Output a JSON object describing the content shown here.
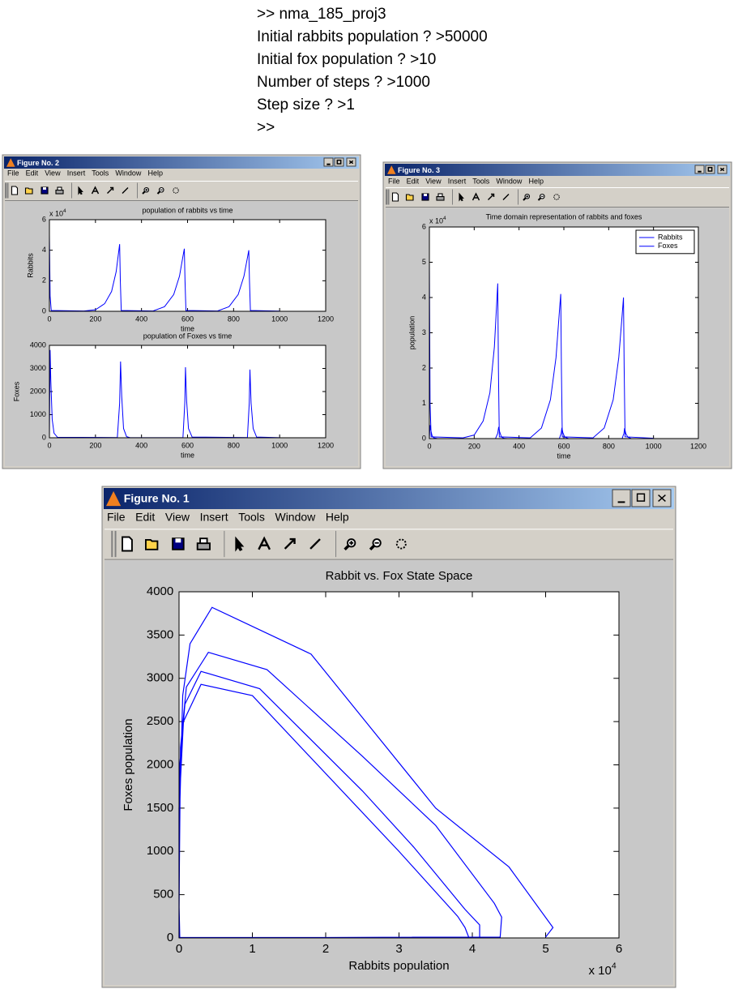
{
  "console": {
    "lines": [
      ">> nma_185_proj3",
      "Initial rabbits population ? >50000",
      "Initial fox population ? >10",
      "Number of steps ? >1000",
      "Step size ? >1",
      ">>"
    ]
  },
  "windows": [
    {
      "title": "Figure No. 2",
      "menu": [
        "File",
        "Edit",
        "View",
        "Insert",
        "Tools",
        "Window",
        "Help"
      ],
      "charts": [
        {
          "type": "line",
          "title": "population of rabbits vs time",
          "xlabel": "time",
          "ylabel": "Rabbits",
          "xlim": [
            0,
            1200
          ],
          "ylim": [
            0,
            6
          ],
          "xticks": [
            0,
            200,
            400,
            600,
            800,
            1000,
            1200
          ],
          "yticks": [
            0,
            2,
            4,
            6
          ],
          "y_exponent": {
            "base": "x 10",
            "power": "4"
          },
          "series": [
            {
              "color": "#0000ff",
              "x": [
                0,
                3,
                8,
                150,
                200,
                240,
                270,
                290,
                300,
                305,
                308,
                312,
                450,
                500,
                540,
                565,
                580,
                586,
                589,
                593,
                730,
                780,
                820,
                845,
                860,
                866,
                869,
                873,
                1000
              ],
              "values": [
                5,
                1,
                0.05,
                0.02,
                0.1,
                0.5,
                1.3,
                2.6,
                3.8,
                4.4,
                2,
                0.05,
                0.02,
                0.3,
                1.1,
                2.3,
                3.6,
                4.1,
                2,
                0.05,
                0.02,
                0.3,
                1.1,
                2.3,
                3.5,
                4.0,
                2,
                0.05,
                0.01
              ]
            }
          ]
        },
        {
          "type": "line",
          "title": "population of Foxes vs time",
          "xlabel": "time",
          "ylabel": "Foxes",
          "xlim": [
            0,
            1200
          ],
          "ylim": [
            0,
            4000
          ],
          "xticks": [
            0,
            200,
            400,
            600,
            800,
            1000,
            1200
          ],
          "yticks": [
            0,
            1000,
            2000,
            3000,
            4000
          ],
          "series": [
            {
              "color": "#0000ff",
              "x": [
                0,
                3,
                6,
                12,
                20,
                35,
                295,
                305,
                309,
                314,
                322,
                335,
                350,
                580,
                588,
                591,
                596,
                604,
                620,
                860,
                868,
                871,
                876,
                885,
                900,
                1000
              ],
              "values": [
                10,
                3800,
                2500,
                800,
                200,
                20,
                10,
                1500,
                3300,
                1800,
                400,
                50,
                5,
                10,
                1500,
                3050,
                1600,
                400,
                30,
                10,
                1500,
                2950,
                1500,
                400,
                30,
                5
              ]
            }
          ]
        }
      ]
    },
    {
      "title": "Figure No. 3",
      "menu": [
        "File",
        "Edit",
        "View",
        "Insert",
        "Tools",
        "Window",
        "Help"
      ],
      "charts": [
        {
          "type": "line",
          "title": "Time domain representation of rabbits and foxes",
          "xlabel": "time",
          "ylabel": "population",
          "xlim": [
            0,
            1200
          ],
          "ylim": [
            0,
            6
          ],
          "xticks": [
            0,
            200,
            400,
            600,
            800,
            1000,
            1200
          ],
          "yticks": [
            0,
            1,
            2,
            3,
            4,
            5,
            6
          ],
          "y_exponent": {
            "base": "x 10",
            "power": "4"
          },
          "legend": "upper right",
          "series": [
            {
              "name": "Rabbits",
              "color": "#0000ff",
              "x": [
                0,
                3,
                8,
                150,
                200,
                240,
                270,
                290,
                300,
                305,
                308,
                312,
                450,
                500,
                540,
                565,
                580,
                586,
                589,
                593,
                730,
                780,
                820,
                845,
                860,
                866,
                869,
                873,
                1000
              ],
              "values": [
                5,
                1,
                0.05,
                0.02,
                0.1,
                0.5,
                1.3,
                2.6,
                3.8,
                4.4,
                2,
                0.05,
                0.02,
                0.3,
                1.1,
                2.3,
                3.6,
                4.1,
                2,
                0.05,
                0.02,
                0.3,
                1.1,
                2.3,
                3.5,
                4.0,
                2,
                0.05,
                0.01
              ]
            },
            {
              "name": "Foxes",
              "color": "#0000ff",
              "x": [
                0,
                3,
                6,
                12,
                20,
                35,
                295,
                305,
                309,
                314,
                322,
                335,
                350,
                580,
                588,
                591,
                596,
                604,
                620,
                860,
                868,
                871,
                876,
                885,
                900,
                1000
              ],
              "values": [
                0.001,
                0.38,
                0.25,
                0.08,
                0.02,
                0.002,
                0.001,
                0.15,
                0.33,
                0.18,
                0.04,
                0.005,
                0.0005,
                0.001,
                0.15,
                0.305,
                0.16,
                0.04,
                0.003,
                0.001,
                0.15,
                0.295,
                0.15,
                0.04,
                0.003,
                0.0005
              ]
            }
          ]
        }
      ]
    },
    {
      "title": "Figure No. 1",
      "menu": [
        "File",
        "Edit",
        "View",
        "Insert",
        "Tools",
        "Window",
        "Help"
      ],
      "charts": [
        {
          "type": "line",
          "title": "Rabbit vs. Fox State Space",
          "xlabel": "Rabbits population",
          "ylabel": "Foxes population",
          "xlim": [
            0,
            6
          ],
          "ylim": [
            0,
            4000
          ],
          "xticks": [
            0,
            1,
            2,
            3,
            4,
            5,
            6
          ],
          "yticks": [
            0,
            500,
            1000,
            1500,
            2000,
            2500,
            3000,
            3500,
            4000
          ],
          "x_exponent": {
            "base": "x 10",
            "power": "4"
          },
          "series": [
            {
              "color": "#0000ff",
              "x": [
                5.0,
                5.1,
                4.5,
                3.5,
                1.8,
                0.45,
                0.15,
                0.05,
                0.01,
                0,
                0.01,
                1,
                3,
                4.38,
                4.4,
                4.3,
                3.5,
                2.5,
                1.2,
                0.4,
                0.1,
                0.02,
                0,
                0.01,
                2,
                4.1,
                4.1,
                3.9,
                3.2,
                2.5,
                1.1,
                0.3,
                0.08,
                0.01,
                0,
                0.01,
                2,
                3.95,
                3.9,
                3.8,
                3.0,
                1.0,
                0.3,
                0.06,
                0,
                0
              ],
              "values": [
                10,
                120,
                820,
                1500,
                3280,
                3820,
                3400,
                2800,
                1500,
                200,
                5,
                5,
                5,
                10,
                240,
                400,
                1300,
                2100,
                3100,
                3300,
                2900,
                2200,
                400,
                5,
                5,
                10,
                150,
                330,
                1050,
                1700,
                2880,
                3080,
                2700,
                2000,
                300,
                5,
                5,
                10,
                120,
                250,
                1000,
                2800,
                2930,
                2500,
                1500,
                0
              ]
            }
          ]
        }
      ]
    }
  ]
}
